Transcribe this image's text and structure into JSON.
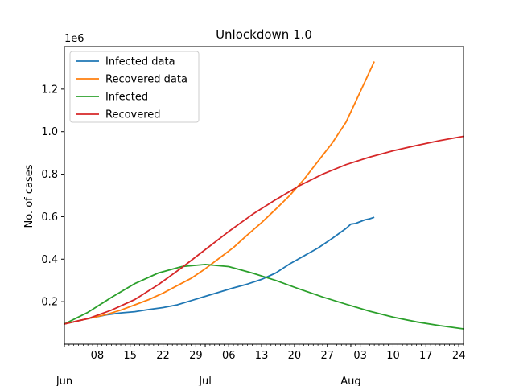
{
  "chart_data": {
    "type": "line",
    "title": "Unlockdown 1.0",
    "ylabel": "No. of cases",
    "xlabel": "",
    "offset_label": "1e6",
    "xlim": [
      "2020-06-01",
      "2020-08-25"
    ],
    "ylim": [
      0.0,
      1.4
    ],
    "y_scale_note": "values in units of 1e6",
    "yticks": [
      0.2,
      0.4,
      0.6,
      0.8,
      1.0,
      1.2
    ],
    "ytick_labels": [
      "0.2",
      "0.4",
      "0.6",
      "0.8",
      "1.0",
      "1.2"
    ],
    "xticks": [
      {
        "date": "2020-06-08",
        "label": "08"
      },
      {
        "date": "2020-06-15",
        "label": "15"
      },
      {
        "date": "2020-06-22",
        "label": "22"
      },
      {
        "date": "2020-06-29",
        "label": "29"
      },
      {
        "date": "2020-07-06",
        "label": "06"
      },
      {
        "date": "2020-07-13",
        "label": "13"
      },
      {
        "date": "2020-07-20",
        "label": "20"
      },
      {
        "date": "2020-07-27",
        "label": "27"
      },
      {
        "date": "2020-08-03",
        "label": "03"
      },
      {
        "date": "2020-08-10",
        "label": "10"
      },
      {
        "date": "2020-08-17",
        "label": "17"
      },
      {
        "date": "2020-08-24",
        "label": "24"
      }
    ],
    "month_labels": [
      {
        "date": "2020-06-01",
        "label": "Jun"
      },
      {
        "date": "2020-07-01",
        "label": "Jul"
      },
      {
        "date": "2020-08-01",
        "label": "Aug"
      }
    ],
    "grid": false,
    "legend_position": "top-left",
    "series": [
      {
        "name": "Infected data",
        "color": "#1f77b4",
        "points": [
          [
            "2020-06-01",
            0.095
          ],
          [
            "2020-06-04",
            0.11
          ],
          [
            "2020-06-07",
            0.125
          ],
          [
            "2020-06-10",
            0.138
          ],
          [
            "2020-06-13",
            0.147
          ],
          [
            "2020-06-16",
            0.153
          ],
          [
            "2020-06-19",
            0.163
          ],
          [
            "2020-06-22",
            0.172
          ],
          [
            "2020-06-25",
            0.185
          ],
          [
            "2020-06-28",
            0.205
          ],
          [
            "2020-07-01",
            0.225
          ],
          [
            "2020-07-04",
            0.245
          ],
          [
            "2020-07-07",
            0.265
          ],
          [
            "2020-07-10",
            0.283
          ],
          [
            "2020-07-13",
            0.305
          ],
          [
            "2020-07-16",
            0.335
          ],
          [
            "2020-07-19",
            0.378
          ],
          [
            "2020-07-22",
            0.415
          ],
          [
            "2020-07-25",
            0.452
          ],
          [
            "2020-07-28",
            0.497
          ],
          [
            "2020-07-31",
            0.545
          ],
          [
            "2020-08-01",
            0.565
          ],
          [
            "2020-08-02",
            0.568
          ],
          [
            "2020-08-04",
            0.585
          ],
          [
            "2020-08-05",
            0.59
          ],
          [
            "2020-08-06",
            0.597
          ]
        ]
      },
      {
        "name": "Recovered data",
        "color": "#ff7f0e",
        "points": [
          [
            "2020-06-01",
            0.095
          ],
          [
            "2020-06-04",
            0.11
          ],
          [
            "2020-06-07",
            0.125
          ],
          [
            "2020-06-10",
            0.14
          ],
          [
            "2020-06-13",
            0.16
          ],
          [
            "2020-06-16",
            0.185
          ],
          [
            "2020-06-19",
            0.21
          ],
          [
            "2020-06-22",
            0.24
          ],
          [
            "2020-06-25",
            0.275
          ],
          [
            "2020-06-28",
            0.31
          ],
          [
            "2020-07-01",
            0.355
          ],
          [
            "2020-07-04",
            0.405
          ],
          [
            "2020-07-07",
            0.455
          ],
          [
            "2020-07-10",
            0.515
          ],
          [
            "2020-07-13",
            0.572
          ],
          [
            "2020-07-16",
            0.635
          ],
          [
            "2020-07-19",
            0.7
          ],
          [
            "2020-07-22",
            0.775
          ],
          [
            "2020-07-25",
            0.86
          ],
          [
            "2020-07-28",
            0.945
          ],
          [
            "2020-07-31",
            1.045
          ],
          [
            "2020-08-02",
            1.14
          ],
          [
            "2020-08-04",
            1.235
          ],
          [
            "2020-08-06",
            1.33
          ]
        ]
      },
      {
        "name": "Infected",
        "color": "#2ca02c",
        "points": [
          [
            "2020-06-01",
            0.095
          ],
          [
            "2020-06-06",
            0.15
          ],
          [
            "2020-06-11",
            0.22
          ],
          [
            "2020-06-16",
            0.285
          ],
          [
            "2020-06-21",
            0.335
          ],
          [
            "2020-06-26",
            0.365
          ],
          [
            "2020-07-01",
            0.375
          ],
          [
            "2020-07-06",
            0.365
          ],
          [
            "2020-07-11",
            0.335
          ],
          [
            "2020-07-16",
            0.3
          ],
          [
            "2020-07-21",
            0.26
          ],
          [
            "2020-07-26",
            0.222
          ],
          [
            "2020-07-31",
            0.188
          ],
          [
            "2020-08-05",
            0.155
          ],
          [
            "2020-08-10",
            0.127
          ],
          [
            "2020-08-15",
            0.105
          ],
          [
            "2020-08-20",
            0.087
          ],
          [
            "2020-08-25",
            0.072
          ]
        ]
      },
      {
        "name": "Recovered",
        "color": "#d62728",
        "points": [
          [
            "2020-06-01",
            0.095
          ],
          [
            "2020-06-06",
            0.12
          ],
          [
            "2020-06-11",
            0.16
          ],
          [
            "2020-06-16",
            0.21
          ],
          [
            "2020-06-21",
            0.28
          ],
          [
            "2020-06-26",
            0.36
          ],
          [
            "2020-07-01",
            0.445
          ],
          [
            "2020-07-06",
            0.53
          ],
          [
            "2020-07-11",
            0.61
          ],
          [
            "2020-07-16",
            0.68
          ],
          [
            "2020-07-21",
            0.745
          ],
          [
            "2020-07-26",
            0.8
          ],
          [
            "2020-07-31",
            0.845
          ],
          [
            "2020-08-05",
            0.88
          ],
          [
            "2020-08-10",
            0.91
          ],
          [
            "2020-08-15",
            0.935
          ],
          [
            "2020-08-20",
            0.958
          ],
          [
            "2020-08-25",
            0.978
          ]
        ]
      }
    ]
  }
}
